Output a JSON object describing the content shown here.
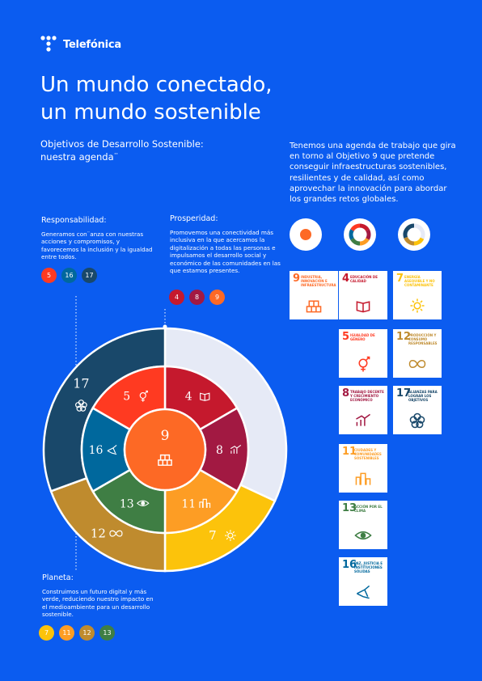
{
  "brand": {
    "name": "Telefónica"
  },
  "title": {
    "line1": "Un mundo conectado,",
    "line2": "un mundo sostenible"
  },
  "subtitle": {
    "line1": "Objetivos de Desarrollo Sostenible:",
    "line2": "nuestra agenda¨"
  },
  "intro": "Tenemos una agenda de trabajo que gira en torno al Objetivo 9 que pretende conseguir infraestructuras sostenibles, resilientes y de calidad, así como aprovechar la innovación para abordar los grandes retos globales.",
  "sections": {
    "responsabilidad": {
      "heading": "Responsabilidad:",
      "text": "Generamos con¨anza con nuestras acciones y compromisos, y favorecemos la inclusión y la igualdad entre todos.",
      "goals": [
        "5",
        "16",
        "17"
      ]
    },
    "prosperidad": {
      "heading": "Prosperidad:",
      "text": "Promovemos una conectividad más inclusiva en la que acercamos la digitalización a todas las personas e impulsamos el desarrollo social y económico de las comunidades en las que estamos presentes.",
      "goals": [
        "4",
        "8",
        "9"
      ]
    },
    "planeta": {
      "heading": "Planeta:",
      "text": "Construimos un futuro digital y más verde, reduciendo nuestro impacto en el medioambiente para un desarrollo sostenible.",
      "goals": [
        "7",
        "11",
        "12",
        "13"
      ]
    }
  },
  "goal_colors": {
    "4": "#c5192d",
    "5": "#ff3a21",
    "7": "#fcc30b",
    "8": "#a21942",
    "9": "#fd6925",
    "11": "#fd9d24",
    "12": "#bf8b2e",
    "13": "#3f7e44",
    "16": "#00689d",
    "17": "#19486a"
  },
  "wheel": {
    "center": "9",
    "inner": [
      {
        "n": "4",
        "icon": "book-icon"
      },
      {
        "n": "8",
        "icon": "growth-chart-icon"
      },
      {
        "n": "11",
        "icon": "city-icon"
      },
      {
        "n": "13",
        "icon": "eye-earth-icon"
      },
      {
        "n": "16",
        "icon": "dove-icon"
      },
      {
        "n": "5",
        "icon": "gender-icon"
      }
    ],
    "outer": [
      {
        "n": "7",
        "icon": "sun-icon"
      },
      {
        "n": "12",
        "icon": "infinity-icon"
      },
      {
        "n": "17",
        "icon": "rings-icon"
      }
    ]
  },
  "tiles": [
    {
      "n": "9",
      "label": "Industria, innovación e infraestructura",
      "icon": "cubes-icon"
    },
    {
      "n": "4",
      "label": "Educación de calidad",
      "icon": "book-icon"
    },
    {
      "n": "7",
      "label": "Energía asequible y no contaminante",
      "icon": "sun-icon"
    },
    {
      "n": "5",
      "label": "Igualdad de género",
      "icon": "gender-icon"
    },
    {
      "n": "12",
      "label": "Producción y consumo responsables",
      "icon": "infinity-icon"
    },
    {
      "n": "8",
      "label": "Trabajo decente y crecimiento económico",
      "icon": "growth-chart-icon"
    },
    {
      "n": "17",
      "label": "Alianzas para lograr los objetivos",
      "icon": "rings-icon"
    },
    {
      "n": "11",
      "label": "Ciudades y comunidades sostenibles",
      "icon": "city-icon"
    },
    {
      "n": "13",
      "label": "Acción por el clima",
      "icon": "eye-earth-icon"
    },
    {
      "n": "16",
      "label": "Paz, justicia e instituciones sólidas",
      "icon": "dove-icon"
    }
  ]
}
